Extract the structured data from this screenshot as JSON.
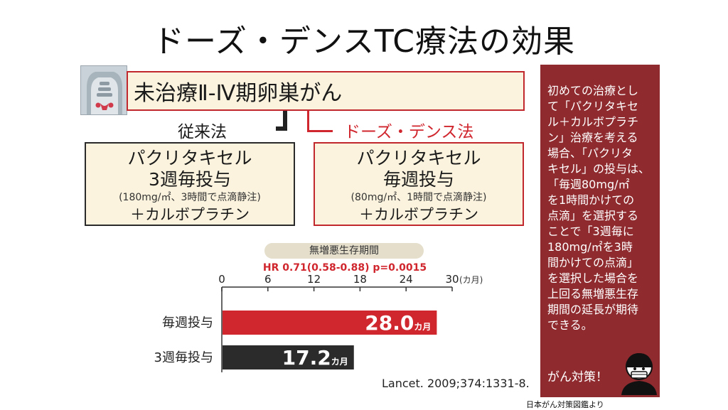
{
  "title": "ドーズ・デンスTC療法の効果",
  "condition": "未治療Ⅱ-Ⅳ期卵巣がん",
  "arms": {
    "standard": {
      "label": "従来法",
      "line1": "パクリタキセル",
      "line2": "3週毎投与",
      "dose": "(180mg/㎡、3時間で点滴静注)",
      "combo": "＋カルボプラチン"
    },
    "dose_dense": {
      "label": "ドーズ・デンス法",
      "line1": "パクリタキセル",
      "line2": "毎週投与",
      "dose": "(80mg/㎡、1時間で点滴静注)",
      "combo": "＋カルボプラチン"
    }
  },
  "chart_data": {
    "type": "bar",
    "orientation": "horizontal",
    "title": "無増悪生存期間",
    "subtitle": "HR 0.71(0.58-0.88) p=0.0015",
    "unit": "(カ月)",
    "xlim": [
      0,
      30
    ],
    "ticks": [
      0,
      6,
      12,
      18,
      24,
      30
    ],
    "categories": [
      "毎週投与",
      "3週毎投与"
    ],
    "values": [
      28.0,
      17.2
    ],
    "labels": [
      {
        "main": "28.0",
        "unit": "カ月"
      },
      {
        "main": "17.2",
        "unit": "カ月"
      }
    ],
    "colors": [
      "#d0262e",
      "#2b2b2b"
    ]
  },
  "citation": "Lancet. 2009;374:1331-8.",
  "sidebar": {
    "lines": [
      "初めての治療とし",
      "て「パクリタキセ",
      "ル＋カルボプラチ",
      "ン」治療を考える",
      "場合、「パクリタ",
      "キセル」の投与は、",
      "「毎週80mg/㎡",
      "を1時間かけての",
      "点滴」を選択する",
      "ことで「3週毎に",
      "180mg/㎡を3時",
      "間かけての点滴」",
      "を選択した場合を",
      "上回る無増悪生存",
      "期間の延長が期待",
      "できる。"
    ],
    "tag": "がん対策！",
    "color": "#8f2b2f"
  },
  "source": "日本がん対策図鑑より"
}
